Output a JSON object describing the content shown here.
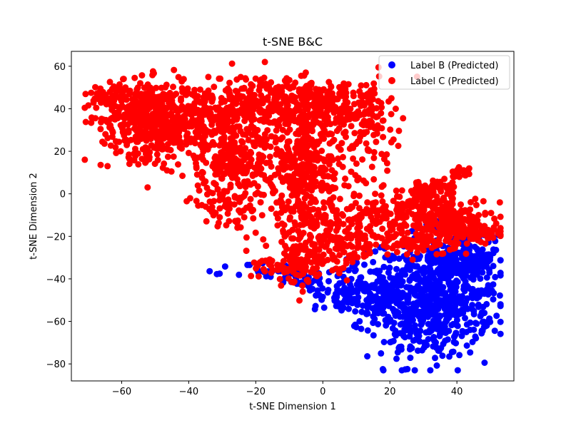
{
  "chart_data": {
    "type": "scatter",
    "title": "t-SNE B&C",
    "xlabel": "t-SNE Dimension 1",
    "ylabel": "t-SNE Dimension 2",
    "xlim": [
      -75,
      57
    ],
    "ylim": [
      -88,
      67
    ],
    "xticks": [
      -60,
      -40,
      -20,
      0,
      20,
      40
    ],
    "yticks": [
      -80,
      -60,
      -40,
      -20,
      0,
      20,
      40,
      60
    ],
    "xtick_labels": [
      "−60",
      "−40",
      "−20",
      "0",
      "20",
      "40"
    ],
    "ytick_labels": [
      "−80",
      "−60",
      "−40",
      "−20",
      "0",
      "20",
      "40",
      "60"
    ],
    "grid": false,
    "legend_position": "top-right",
    "series": [
      {
        "name": "Label B (Predicted)",
        "color": "#0000ff",
        "clusters": [
          {
            "cx": 32,
            "cy": -50,
            "sx": 9,
            "sy": 14,
            "n": 650
          },
          {
            "cx": 40,
            "cy": -32,
            "sx": 6,
            "sy": 8,
            "n": 150
          },
          {
            "cx": 15,
            "cy": -45,
            "sx": 7,
            "sy": 8,
            "n": 120
          },
          {
            "cx": 5,
            "cy": -48,
            "sx": 4,
            "sy": 4,
            "n": 40
          },
          {
            "cx": -15,
            "cy": -37,
            "sx": 6,
            "sy": 2.5,
            "n": 40
          },
          {
            "cx": -5,
            "cy": -40,
            "sx": 3,
            "sy": 3,
            "n": 25
          },
          {
            "cx": 48,
            "cy": -45,
            "sx": 3,
            "sy": 12,
            "n": 40
          }
        ]
      },
      {
        "name": "Label C (Predicted)",
        "color": "#ff0000",
        "clusters": [
          {
            "cx": -52,
            "cy": 35,
            "sx": 7,
            "sy": 9,
            "n": 420
          },
          {
            "cx": -62,
            "cy": 46,
            "sx": 4,
            "sy": 3,
            "n": 60
          },
          {
            "cx": -35,
            "cy": 35,
            "sx": 7,
            "sy": 8,
            "n": 220
          },
          {
            "cx": -18,
            "cy": 42,
            "sx": 8,
            "sy": 7,
            "n": 260
          },
          {
            "cx": -2,
            "cy": 38,
            "sx": 7,
            "sy": 8,
            "n": 220
          },
          {
            "cx": 10,
            "cy": 42,
            "sx": 5,
            "sy": 6,
            "n": 90
          },
          {
            "cx": -25,
            "cy": 15,
            "sx": 9,
            "sy": 7,
            "n": 220
          },
          {
            "cx": -5,
            "cy": 12,
            "sx": 7,
            "sy": 8,
            "n": 180
          },
          {
            "cx": -28,
            "cy": -5,
            "sx": 6,
            "sy": 5,
            "n": 80
          },
          {
            "cx": -5,
            "cy": -10,
            "sx": 6,
            "sy": 8,
            "n": 150
          },
          {
            "cx": 5,
            "cy": -25,
            "sx": 6,
            "sy": 6,
            "n": 120
          },
          {
            "cx": -8,
            "cy": -33,
            "sx": 5,
            "sy": 5,
            "n": 80
          },
          {
            "cx": 20,
            "cy": -10,
            "sx": 8,
            "sy": 5,
            "n": 150
          },
          {
            "cx": 32,
            "cy": 0,
            "sx": 4,
            "sy": 4,
            "n": 90
          },
          {
            "cx": 38,
            "cy": -12,
            "sx": 7,
            "sy": 5,
            "n": 160
          },
          {
            "cx": 45,
            "cy": -18,
            "sx": 5,
            "sy": 3,
            "n": 60
          },
          {
            "cx": 28,
            "cy": -23,
            "sx": 6,
            "sy": 3,
            "n": 90
          },
          {
            "cx": 41,
            "cy": 10,
            "sx": 1.3,
            "sy": 1.2,
            "n": 25
          },
          {
            "cx": -15,
            "cy": -35,
            "sx": 4,
            "sy": 2,
            "n": 20
          },
          {
            "cx": 15,
            "cy": 30,
            "sx": 5,
            "sy": 10,
            "n": 60
          }
        ]
      }
    ]
  }
}
